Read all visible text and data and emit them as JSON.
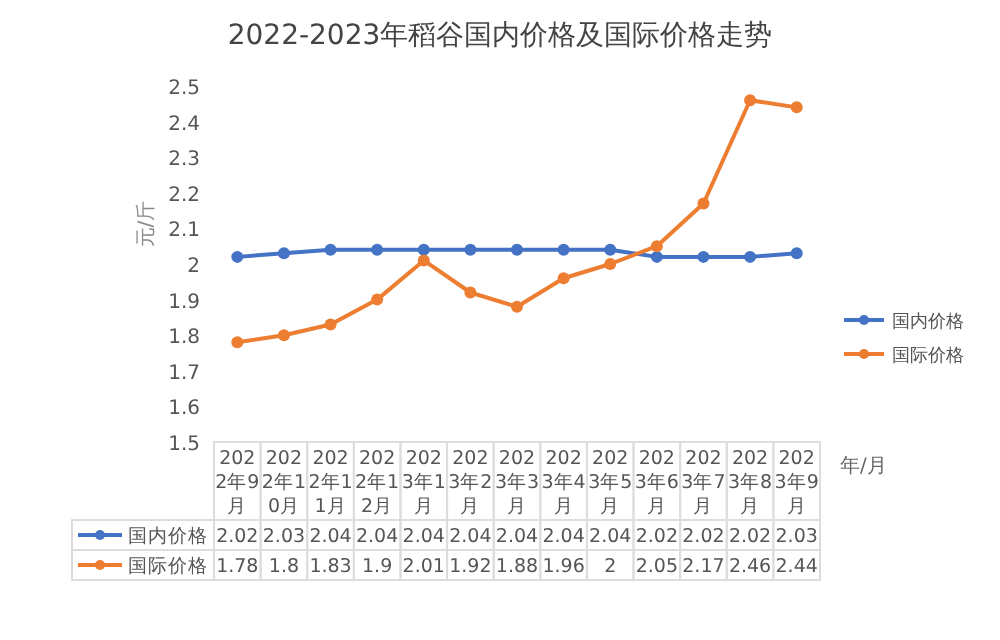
{
  "chart_data": {
    "type": "line",
    "title": "2022-2023年稻谷国内价格及国际价格走势",
    "ylabel": "元/斤",
    "xlabel": "年/月",
    "categories": [
      "2022年9月",
      "2022年10月",
      "2022年11月",
      "2022年12月",
      "2023年1月",
      "2023年2月",
      "2023年3月",
      "2023年4月",
      "2023年5月",
      "2023年6月",
      "2023年7月",
      "2023年8月",
      "2023年9月"
    ],
    "series": [
      {
        "name": "国内价格",
        "color": "#4472c4",
        "values": [
          2.02,
          2.03,
          2.04,
          2.04,
          2.04,
          2.04,
          2.04,
          2.04,
          2.04,
          2.02,
          2.02,
          2.02,
          2.03
        ]
      },
      {
        "name": "国际价格",
        "color": "#ed7d31",
        "values": [
          1.78,
          1.8,
          1.83,
          1.9,
          2.01,
          1.92,
          1.88,
          1.96,
          2,
          2.05,
          2.17,
          2.46,
          2.44
        ]
      }
    ],
    "ylim": [
      1.5,
      2.5
    ],
    "yticks": [
      1.5,
      1.6,
      1.7,
      1.8,
      1.9,
      2,
      2.1,
      2.2,
      2.3,
      2.4,
      2.5
    ],
    "grid": false,
    "legend": "right",
    "marker": "circle",
    "line_style": "solid",
    "data_labels": true
  }
}
